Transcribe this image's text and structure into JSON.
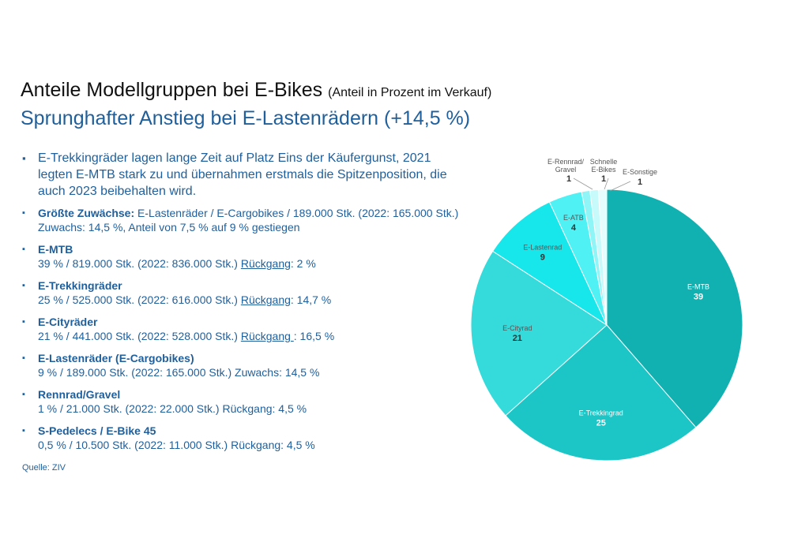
{
  "header": {
    "title": "Anteile Modellgruppen bei E-Bikes",
    "title_note": "(Anteil in Prozent im Verkauf)",
    "subtitle": "Sprunghafter Anstieg bei E-Lastenrädern (+14,5 %)"
  },
  "intro": "E-Trekkingräder lagen lange Zeit auf Platz Eins der Käufergunst, 2021 legten E-MTB stark zu und übernahmen erstmals die Spitzenposition, die auch 2023 beibehalten wird.",
  "items": [
    {
      "head": "Größte Zuwächse:",
      "text": " E-Lastenräder / E-Cargobikes / 189.000 Stk. (2022: 165.000 Stk.) Zuwachs: 14,5 %, Anteil von 7,5 % auf 9 % gestiegen"
    },
    {
      "head": "E-MTB",
      "pre": "39 % / 819.000 Stk. (2022: 836.000 Stk.) ",
      "change_word": "Rückgang",
      "post": ": 2 %"
    },
    {
      "head": "E-Trekkingräder",
      "pre": "25 % / 525.000 Stk. (2022: 616.000 Stk.) ",
      "change_word": "Rückgang",
      "post": ": 14,7 %"
    },
    {
      "head": "E-Cityräder",
      "pre": "21 % / 441.000 Stk. (2022: 528.000 Stk.) ",
      "change_word": "Rückgang ",
      "post": ": 16,5 %"
    },
    {
      "head": "E-Lastenräder (E-Cargobikes)",
      "text": "9 % / 189.000 Stk. (2022: 165.000 Stk.) Zuwachs: 14,5 %"
    },
    {
      "head": "Rennrad/Gravel",
      "text": "1 % / 21.000 Stk. (2022: 22.000 Stk.) Rückgang: 4,5 %"
    },
    {
      "head": "S-Pedelecs / E-Bike 45",
      "text": "0,5 % / 10.500 Stk. (2022: 11.000 Stk.) Rückgang: 4,5 %"
    }
  ],
  "source": "Quelle: ZIV",
  "chart_data": {
    "type": "pie",
    "title": "",
    "slices": [
      {
        "label": "E-MTB",
        "value": 39,
        "value_label": "39",
        "color": "#12b1b1"
      },
      {
        "label": "E-Trekkingrad",
        "value": 25,
        "value_label": "25",
        "color": "#1cc5c6"
      },
      {
        "label": "E-Cityrad",
        "value": 21,
        "value_label": "21",
        "color": "#35dbdb"
      },
      {
        "label": "E-Lastenrad",
        "value": 9,
        "value_label": "9",
        "color": "#17e6ea"
      },
      {
        "label": "E-ATB",
        "value": 4,
        "value_label": "4",
        "color": "#4ff1f4"
      },
      {
        "label": "E-Rennrad/ Gravel",
        "value": 1,
        "value_label": "1",
        "color": "#8ff5f7"
      },
      {
        "label": "Schnelle E-Bikes",
        "value": 1,
        "value_label": "1",
        "color": "#c6fafb"
      },
      {
        "label": "E-Sonstige",
        "value": 1,
        "value_label": "1",
        "color": "#e6fdfd"
      }
    ]
  }
}
